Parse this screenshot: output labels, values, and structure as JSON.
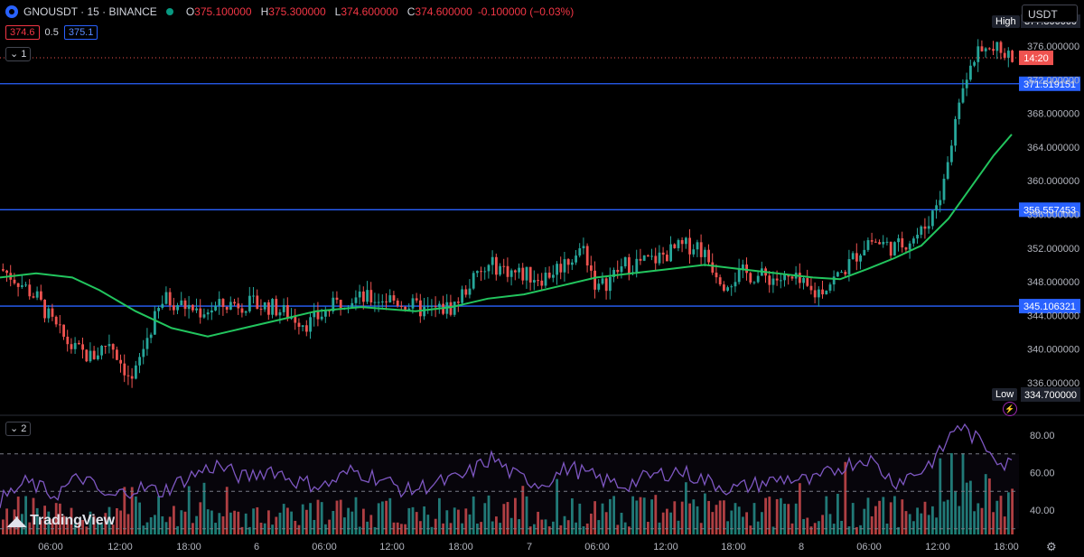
{
  "header": {
    "symbol": "GNOUSDT · 15 · BINANCE",
    "open_label": "O",
    "open": "375.100000",
    "high_label": "H",
    "high": "375.300000",
    "low_label": "L",
    "low": "374.600000",
    "close_label": "C",
    "close": "374.600000",
    "change": "-0.100000 (−0.03%)"
  },
  "quote": {
    "bid": "374.6",
    "spread": "0.5",
    "ask": "375.1"
  },
  "panes": {
    "main_tag": "1",
    "volume_tag": "2"
  },
  "currency_selector": "USDT",
  "brand": "TradingView",
  "colors": {
    "up": "#26a69a",
    "down": "#ef5350",
    "ma": "#22c55e",
    "hline": "#2962ff",
    "rsi": "#7e57c2"
  },
  "chart_data": {
    "type": "candlestick",
    "price_axis": {
      "ylim": [
        334.7,
        377.8
      ],
      "ticks": [
        "376.000000",
        "372.000000",
        "368.000000",
        "364.000000",
        "360.000000",
        "356.000000",
        "352.000000",
        "348.000000",
        "344.000000",
        "340.000000",
        "336.000000"
      ]
    },
    "time_axis": {
      "labels": [
        "06:00",
        "12:00",
        "18:00",
        "6",
        "06:00",
        "12:00",
        "18:00",
        "7",
        "06:00",
        "12:00",
        "18:00",
        "8",
        "06:00",
        "12:00",
        "18:00"
      ]
    },
    "horizontal_lines": [
      {
        "value": 371.519151,
        "label": "371.519151"
      },
      {
        "value": 356.557453,
        "label": "356.557453"
      },
      {
        "value": 345.106321,
        "label": "345.106321"
      }
    ],
    "last_price": {
      "value": 374.6,
      "countdown": "14:20"
    },
    "high": {
      "label": "High",
      "value": "377.800000"
    },
    "low": {
      "label": "Low",
      "value": "334.700000"
    },
    "close_anchors": [
      [
        0,
        349.5
      ],
      [
        20,
        348
      ],
      [
        40,
        346
      ],
      [
        60,
        342.5
      ],
      [
        80,
        340
      ],
      [
        100,
        339
      ],
      [
        120,
        341
      ],
      [
        145,
        336
      ],
      [
        160,
        341
      ],
      [
        180,
        346
      ],
      [
        220,
        344.5
      ],
      [
        260,
        345.5
      ],
      [
        300,
        345
      ],
      [
        340,
        343
      ],
      [
        380,
        346
      ],
      [
        430,
        346
      ],
      [
        470,
        344.5
      ],
      [
        500,
        345
      ],
      [
        520,
        348
      ],
      [
        545,
        350
      ],
      [
        570,
        349
      ],
      [
        600,
        348.5
      ],
      [
        620,
        350
      ],
      [
        645,
        352
      ],
      [
        660,
        347
      ],
      [
        690,
        350
      ],
      [
        720,
        350.5
      ],
      [
        750,
        352
      ],
      [
        770,
        352.5
      ],
      [
        800,
        348
      ],
      [
        820,
        349
      ],
      [
        850,
        348.5
      ],
      [
        880,
        348
      ],
      [
        900,
        346.5
      ],
      [
        930,
        349
      ],
      [
        960,
        353
      ],
      [
        990,
        352
      ],
      [
        1020,
        354
      ],
      [
        1040,
        358
      ],
      [
        1055,
        366
      ],
      [
        1065,
        372
      ],
      [
        1080,
        375
      ],
      [
        1100,
        375.5
      ],
      [
        1120,
        374.6
      ]
    ],
    "ma_anchors": [
      [
        0,
        348.5
      ],
      [
        40,
        349
      ],
      [
        80,
        348.5
      ],
      [
        110,
        347
      ],
      [
        150,
        344.5
      ],
      [
        190,
        342.5
      ],
      [
        230,
        341.5
      ],
      [
        270,
        342.5
      ],
      [
        310,
        343.5
      ],
      [
        350,
        344.5
      ],
      [
        400,
        345
      ],
      [
        460,
        344.5
      ],
      [
        500,
        345
      ],
      [
        540,
        346
      ],
      [
        580,
        346.5
      ],
      [
        620,
        347.5
      ],
      [
        660,
        348.5
      ],
      [
        700,
        349
      ],
      [
        740,
        349.5
      ],
      [
        780,
        350
      ],
      [
        820,
        349.5
      ],
      [
        860,
        349
      ],
      [
        900,
        348.5
      ],
      [
        930,
        348.3
      ],
      [
        960,
        349.5
      ],
      [
        990,
        350.8
      ],
      [
        1020,
        352.3
      ],
      [
        1050,
        355.5
      ],
      [
        1080,
        360
      ],
      [
        1100,
        363
      ],
      [
        1120,
        365.5
      ]
    ],
    "rsi": {
      "levels": [
        70,
        50,
        30
      ],
      "ticks": [
        "80.00",
        "60.00",
        "40.00"
      ],
      "anchors": [
        [
          0,
          45
        ],
        [
          30,
          55
        ],
        [
          60,
          48
        ],
        [
          90,
          58
        ],
        [
          120,
          46
        ],
        [
          150,
          52
        ],
        [
          180,
          50
        ],
        [
          210,
          58
        ],
        [
          240,
          64
        ],
        [
          270,
          57
        ],
        [
          300,
          62
        ],
        [
          330,
          55
        ],
        [
          360,
          53
        ],
        [
          390,
          61
        ],
        [
          420,
          57
        ],
        [
          450,
          50
        ],
        [
          480,
          54
        ],
        [
          510,
          57
        ],
        [
          545,
          68
        ],
        [
          570,
          58
        ],
        [
          600,
          54
        ],
        [
          630,
          63
        ],
        [
          660,
          57
        ],
        [
          690,
          53
        ],
        [
          720,
          58
        ],
        [
          750,
          61
        ],
        [
          780,
          56
        ],
        [
          810,
          51
        ],
        [
          840,
          54
        ],
        [
          870,
          57
        ],
        [
          900,
          55
        ],
        [
          930,
          63
        ],
        [
          960,
          68
        ],
        [
          990,
          55
        ],
        [
          1020,
          61
        ],
        [
          1040,
          70
        ],
        [
          1060,
          86
        ],
        [
          1080,
          78
        ],
        [
          1100,
          71
        ],
        [
          1110,
          64
        ],
        [
          1120,
          65
        ]
      ]
    }
  }
}
